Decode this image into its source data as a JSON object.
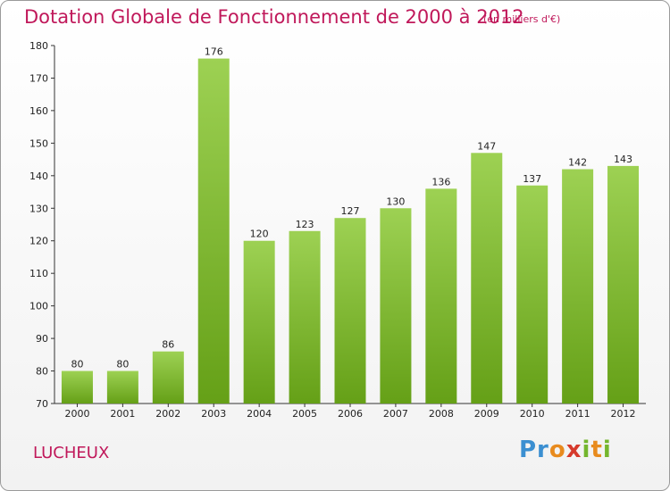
{
  "header": {
    "title": "Dotation Globale de Fonctionnement de 2000 à 2012",
    "subtitle": "(en milliers d'€)"
  },
  "footer": {
    "commune": "LUCHEUX",
    "logo": "Proxiti"
  },
  "colors": {
    "accent": "#c0185a",
    "bar_light": "#9dd153",
    "bar_dark": "#65a017"
  },
  "chart_data": {
    "type": "bar",
    "title": "Dotation Globale de Fonctionnement de 2000 à 2012",
    "subtitle": "(en milliers d'€)",
    "categories": [
      "2000",
      "2001",
      "2002",
      "2003",
      "2004",
      "2005",
      "2006",
      "2007",
      "2008",
      "2009",
      "2010",
      "2011",
      "2012"
    ],
    "values": [
      80,
      80,
      86,
      176,
      120,
      123,
      127,
      130,
      136,
      147,
      137,
      142,
      143
    ],
    "ylim": [
      70,
      180
    ],
    "yticks": [
      70,
      80,
      90,
      100,
      110,
      120,
      130,
      140,
      150,
      160,
      170,
      180
    ],
    "grid": false,
    "data_labels": true
  }
}
